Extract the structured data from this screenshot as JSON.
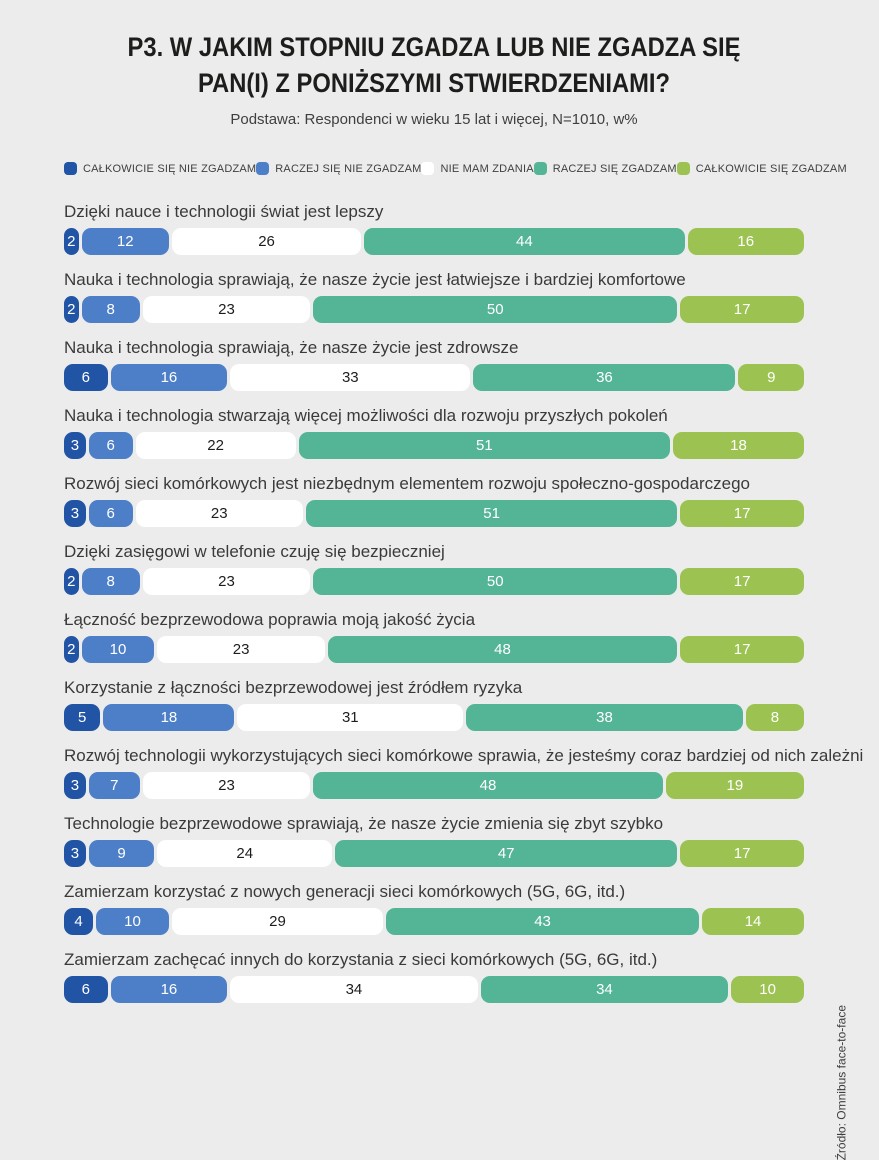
{
  "title": {
    "line1": "P3. W JAKIM STOPNIU ZGADZA LUB NIE ZGADZA SIĘ",
    "line2": "PAN(I) Z PONIŻSZYMI STWIERDZENIAMI?"
  },
  "subtitle": "Podstawa: Respondenci w wieku 15 lat i więcej, N=1010, w%",
  "source_note": "Źródło: Omnibus face-to-face",
  "colors": {
    "background": "#ececec",
    "title_text": "#1d1d1b",
    "body_text": "#3a3a39",
    "strongly_disagree": "#2154a4",
    "rather_disagree": "#4d7fc8",
    "no_opinion": "#ffffff",
    "rather_agree": "#53b595",
    "strongly_agree": "#9cc351"
  },
  "legend": [
    {
      "label": "CAŁKOWICIE SIĘ NIE ZGADZAM",
      "color": "#2154a4"
    },
    {
      "label": "RACZEJ SIĘ NIE ZGADZAM",
      "color": "#4d7fc8"
    },
    {
      "label": "NIE MAM ZDANIA",
      "color": "#ffffff"
    },
    {
      "label": "RACZEJ SIĘ ZGADZAM",
      "color": "#53b595"
    },
    {
      "label": "CAŁKOWICIE SIĘ ZGADZAM",
      "color": "#9cc351"
    }
  ],
  "chart_data": {
    "type": "bar",
    "stacked": true,
    "orientation": "horizontal",
    "unit": "%",
    "xlim": [
      0,
      100
    ],
    "legend_position": "top",
    "title": "P3. W jakim stopniu zgadza lub nie zgadza się Pan(i) z poniższymi stwierdzeniami?",
    "subtitle": "Podstawa: Respondenci w wieku 15 lat i więcej, N=1010, w%",
    "categories": [
      "Dzięki nauce i technologii świat jest lepszy",
      "Nauka i technologia sprawiają, że nasze życie jest łatwiejsze i bardziej komfortowe",
      "Nauka i technologia sprawiają, że nasze życie jest zdrowsze",
      "Nauka i technologia stwarzają więcej możliwości dla rozwoju przyszłych pokoleń",
      "Rozwój sieci komórkowych jest niezbędnym elementem rozwoju społeczno-gospodarczego",
      "Dzięki zasięgowi w telefonie czuję się bezpieczniej",
      "Łączność bezprzewodowa poprawia moją jakość życia",
      "Korzystanie z łączności bezprzewodowej jest źródłem ryzyka",
      "Rozwój technologii wykorzystujących sieci komórkowe sprawia, że jesteśmy coraz bardziej od nich zależni",
      "Technologie bezprzewodowe sprawiają, że nasze życie zmienia się zbyt szybko",
      "Zamierzam korzystać z nowych generacji sieci komórkowych (5G, 6G, itd.)",
      "Zamierzam zachęcać innych do korzystania z sieci komórkowych (5G, 6G, itd.)"
    ],
    "series": [
      {
        "name": "CAŁKOWICIE SIĘ NIE ZGADZAM",
        "values": [
          2,
          2,
          6,
          3,
          3,
          2,
          2,
          5,
          3,
          3,
          4,
          6
        ]
      },
      {
        "name": "RACZEJ SIĘ NIE ZGADZAM",
        "values": [
          12,
          8,
          16,
          6,
          6,
          8,
          10,
          18,
          7,
          9,
          10,
          16
        ]
      },
      {
        "name": "NIE MAM ZDANIA",
        "values": [
          26,
          23,
          33,
          22,
          23,
          23,
          23,
          31,
          23,
          24,
          29,
          34
        ]
      },
      {
        "name": "RACZEJ SIĘ ZGADZAM",
        "values": [
          44,
          50,
          36,
          51,
          51,
          50,
          48,
          38,
          48,
          47,
          43,
          34
        ]
      },
      {
        "name": "CAŁKOWICIE SIĘ ZGADZAM",
        "values": [
          16,
          17,
          9,
          18,
          17,
          17,
          17,
          8,
          19,
          17,
          14,
          10
        ]
      }
    ]
  }
}
